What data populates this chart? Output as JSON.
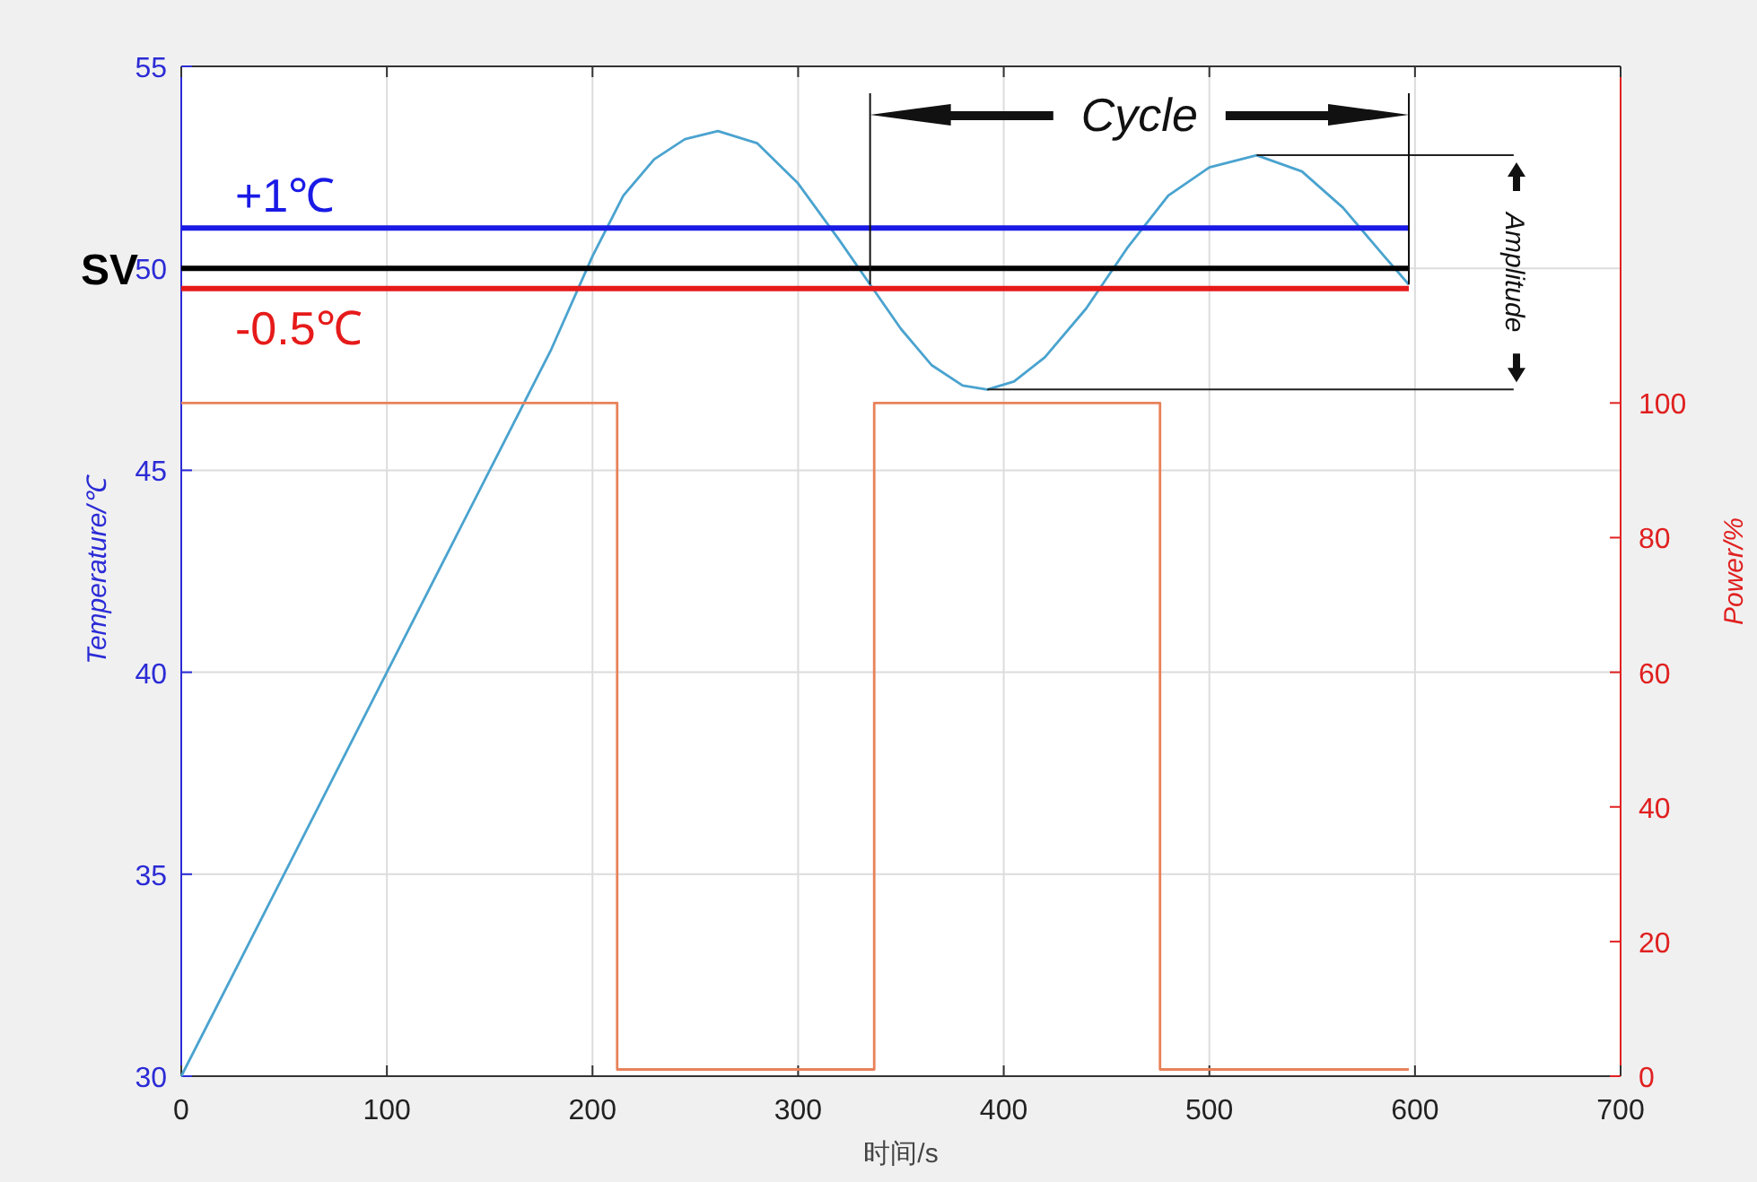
{
  "chart_data": {
    "type": "line",
    "xlabel": "时间/s",
    "ylabel": "Temperature/℃",
    "y2label": "Power/%",
    "xlim": [
      0,
      700
    ],
    "xticks": [
      0,
      100,
      200,
      300,
      400,
      500,
      600,
      700
    ],
    "ylim": [
      30,
      55
    ],
    "yticks": [
      30,
      35,
      40,
      45,
      50,
      55
    ],
    "y2lim": [
      0,
      150
    ],
    "y2ticks": [
      0,
      20,
      40,
      60,
      80,
      100
    ],
    "grid": true,
    "series": [
      {
        "type": "line",
        "color": "#4aa3cf",
        "x": [
          0,
          50,
          100,
          150,
          180,
          200,
          215,
          230,
          245,
          261,
          280,
          300,
          320,
          335,
          350,
          365,
          380,
          392,
          405,
          420,
          440,
          460,
          480,
          500,
          523,
          545,
          565,
          585,
          597
        ],
        "values": [
          30,
          35,
          40,
          45,
          48,
          50.3,
          51.8,
          52.7,
          53.2,
          53.4,
          53.1,
          52.1,
          50.7,
          49.6,
          48.5,
          47.6,
          47.1,
          47.0,
          47.2,
          47.8,
          49.0,
          50.5,
          51.8,
          52.5,
          52.8,
          52.4,
          51.5,
          50.3,
          49.6
        ]
      },
      {
        "type": "line",
        "color": "#222222",
        "x": [
          392,
          648
        ],
        "values": [
          47.0,
          47.0
        ]
      },
      {
        "type": "line",
        "color": "#222222",
        "x": [
          523,
          648
        ],
        "values": [
          52.8,
          52.8
        ]
      },
      {
        "type": "step",
        "axis": "y2",
        "color": "#e8825a",
        "x": [
          0,
          212,
          337,
          476,
          597
        ],
        "values": [
          100,
          1,
          100,
          1,
          1
        ]
      }
    ],
    "ref_lines": [
      {
        "axis": "y",
        "value": 51,
        "label": "+1℃",
        "color": "#1a1ae6"
      },
      {
        "axis": "y",
        "value": 50,
        "label": "SV",
        "color": "#000000"
      },
      {
        "axis": "y",
        "value": 49.5,
        "label": "-0.5℃",
        "color": "#e61a1a"
      }
    ],
    "annotations": [
      "Cycle",
      "Amplitude"
    ]
  }
}
